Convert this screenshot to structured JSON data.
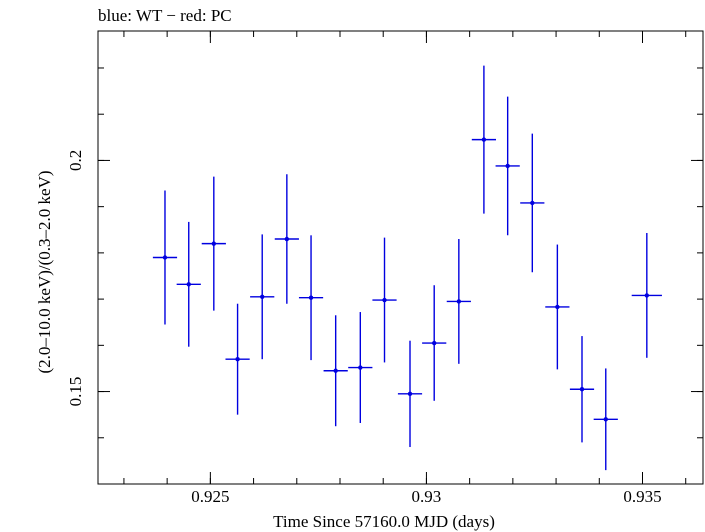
{
  "chart_data": {
    "type": "scatter",
    "title": "blue: WT − red: PC",
    "xlabel": "Time Since 57160.0 MJD (days)",
    "ylabel": "(2.0–10.0 keV)/(0.3–2.0 keV)",
    "xlim": [
      0.9224,
      0.9364
    ],
    "ylim": [
      0.13,
      0.228
    ],
    "x_ticks": [
      {
        "value": 0.925,
        "label": "0.925"
      },
      {
        "value": 0.93,
        "label": "0.93"
      },
      {
        "value": 0.935,
        "label": "0.935"
      }
    ],
    "y_ticks": [
      {
        "value": 0.15,
        "label": "0.15"
      },
      {
        "value": 0.2,
        "label": "0.2"
      }
    ],
    "x_minor_step": 0.001,
    "y_minor_step": 0.01,
    "grid": false,
    "series": [
      {
        "name": "WT",
        "color": "#0000e0",
        "points": [
          {
            "x": 0.92395,
            "xerr": 0.00028,
            "y": 0.179,
            "yerr": 0.0145
          },
          {
            "x": 0.9245,
            "xerr": 0.00028,
            "y": 0.1732,
            "yerr": 0.0135
          },
          {
            "x": 0.92508,
            "xerr": 0.00028,
            "y": 0.182,
            "yerr": 0.0145
          },
          {
            "x": 0.92563,
            "xerr": 0.00028,
            "y": 0.157,
            "yerr": 0.012
          },
          {
            "x": 0.9262,
            "xerr": 0.00028,
            "y": 0.1705,
            "yerr": 0.0135
          },
          {
            "x": 0.92677,
            "xerr": 0.00028,
            "y": 0.183,
            "yerr": 0.014
          },
          {
            "x": 0.92733,
            "xerr": 0.00028,
            "y": 0.1703,
            "yerr": 0.0135
          },
          {
            "x": 0.9279,
            "xerr": 0.00028,
            "y": 0.1545,
            "yerr": 0.012
          },
          {
            "x": 0.92847,
            "xerr": 0.00028,
            "y": 0.1552,
            "yerr": 0.012
          },
          {
            "x": 0.92903,
            "xerr": 0.00028,
            "y": 0.1698,
            "yerr": 0.0135
          },
          {
            "x": 0.92962,
            "xerr": 0.00028,
            "y": 0.1495,
            "yerr": 0.0115
          },
          {
            "x": 0.93018,
            "xerr": 0.00028,
            "y": 0.1605,
            "yerr": 0.0125
          },
          {
            "x": 0.93075,
            "xerr": 0.00028,
            "y": 0.1695,
            "yerr": 0.0135
          },
          {
            "x": 0.93133,
            "xerr": 0.00028,
            "y": 0.2045,
            "yerr": 0.016
          },
          {
            "x": 0.93188,
            "xerr": 0.00028,
            "y": 0.1988,
            "yerr": 0.015
          },
          {
            "x": 0.93245,
            "xerr": 0.00028,
            "y": 0.1908,
            "yerr": 0.015
          },
          {
            "x": 0.93303,
            "xerr": 0.00028,
            "y": 0.1683,
            "yerr": 0.0135
          },
          {
            "x": 0.9336,
            "xerr": 0.00028,
            "y": 0.1505,
            "yerr": 0.0115
          },
          {
            "x": 0.93415,
            "xerr": 0.00028,
            "y": 0.144,
            "yerr": 0.011
          },
          {
            "x": 0.9351,
            "xerr": 0.00035,
            "y": 0.1708,
            "yerr": 0.0135
          }
        ]
      }
    ]
  }
}
